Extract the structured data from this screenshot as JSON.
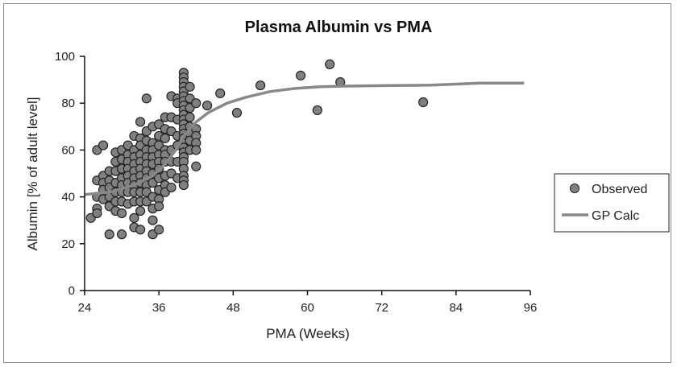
{
  "chart_data": {
    "type": "scatter",
    "title": "Plasma Albumin vs PMA",
    "xlabel": "PMA (Weeks)",
    "ylabel": "Albumin [% of adult level]",
    "xlim": [
      24,
      96
    ],
    "ylim": [
      0,
      100
    ],
    "xticks": [
      "24",
      "36",
      "48",
      "60",
      "72",
      "84",
      "96"
    ],
    "yticks": [
      "0",
      "20",
      "40",
      "60",
      "80",
      "100"
    ],
    "grid": false,
    "legend_position": "right",
    "colors": {
      "marker_fill": "#808080",
      "marker_stroke": "#222222",
      "line": "#888888"
    },
    "series": [
      {
        "name": "Observed",
        "kind": "scatter",
        "columns": [
          {
            "x": 25,
            "ys": [
              31
            ]
          },
          {
            "x": 26,
            "ys": [
              60,
              47,
              40,
              35,
              33
            ]
          },
          {
            "x": 27,
            "ys": [
              62,
              49,
              46,
              43,
              39
            ]
          },
          {
            "x": 28,
            "ys": [
              51,
              47,
              44,
              40,
              36,
              24
            ]
          },
          {
            "x": 29,
            "ys": [
              59,
              55,
              51,
              46,
              42,
              38,
              34
            ]
          },
          {
            "x": 30,
            "ys": [
              60,
              56,
              52,
              48,
              45,
              42,
              38,
              33,
              24
            ]
          },
          {
            "x": 31,
            "ys": [
              62,
              58,
              55,
              52,
              49,
              46,
              42,
              37
            ]
          },
          {
            "x": 32,
            "ys": [
              66,
              60,
              57,
              54,
              51,
              48,
              45,
              42,
              38,
              31,
              27
            ]
          },
          {
            "x": 33,
            "ys": [
              72,
              65,
              62,
              58,
              55,
              52,
              49,
              46,
              42,
              38,
              34,
              26
            ]
          },
          {
            "x": 34,
            "ys": [
              82,
              68,
              64,
              60,
              57,
              54,
              51,
              48,
              45,
              42,
              38
            ]
          },
          {
            "x": 35,
            "ys": [
              70,
              63,
              60,
              57,
              54,
              50,
              46,
              40,
              35,
              30,
              24
            ]
          },
          {
            "x": 36,
            "ys": [
              71,
              66,
              62,
              58,
              55,
              52,
              48,
              43,
              39,
              36,
              26
            ]
          },
          {
            "x": 37,
            "ys": [
              74,
              69,
              65,
              60,
              58,
              55,
              49,
              45,
              42
            ]
          },
          {
            "x": 38,
            "ys": [
              83,
              74,
              68,
              60,
              55,
              50,
              44
            ]
          },
          {
            "x": 39,
            "ys": [
              82,
              80,
              73,
              66,
              62,
              55,
              48
            ]
          },
          {
            "x": 40,
            "ys": [
              93,
              91,
              89,
              87,
              85,
              83,
              81,
              79,
              77,
              75,
              73,
              71,
              69,
              67,
              65,
              63,
              61,
              59,
              57,
              55,
              52,
              49,
              47,
              45
            ]
          },
          {
            "x": 41,
            "ys": [
              87,
              82,
              78,
              74,
              70,
              67,
              64,
              60
            ]
          },
          {
            "x": 42,
            "ys": [
              80,
              69,
              66,
              63,
              60,
              53
            ]
          },
          {
            "x": 43.8,
            "ys": [
              79
            ]
          },
          {
            "x": 45.9,
            "ys": [
              84.2
            ]
          },
          {
            "x": 48.6,
            "ys": [
              75.9
            ]
          },
          {
            "x": 52.4,
            "ys": [
              87.6
            ]
          },
          {
            "x": 58.9,
            "ys": [
              91.8
            ]
          },
          {
            "x": 61.6,
            "ys": [
              77
            ]
          },
          {
            "x": 63.6,
            "ys": [
              96.6
            ]
          },
          {
            "x": 65.3,
            "ys": [
              89
            ]
          },
          {
            "x": 78.7,
            "ys": [
              80.4
            ]
          }
        ]
      },
      {
        "name": "GP Calc",
        "kind": "line",
        "x": [
          24,
          28,
          32,
          35,
          37,
          39,
          40,
          42,
          44,
          47,
          50,
          54,
          58,
          62,
          66,
          72,
          80,
          88,
          95
        ],
        "y": [
          41,
          42,
          45,
          49,
          54,
          61,
          66,
          72,
          76,
          80,
          82.5,
          85,
          86.3,
          87,
          87.3,
          87.5,
          87.7,
          88.6,
          88.6
        ]
      }
    ]
  }
}
